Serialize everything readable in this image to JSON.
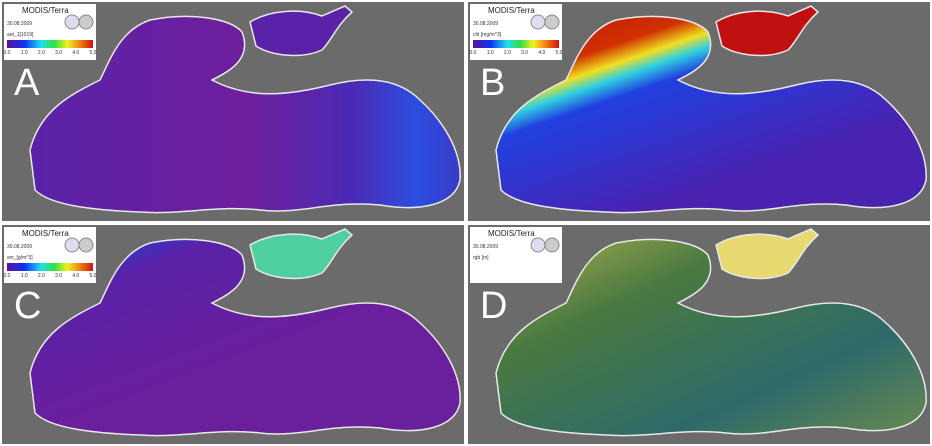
{
  "panels": [
    {
      "letter": "A",
      "sensor": "MODIS/Terra",
      "date": "30.08.2009",
      "product": "aot_1[1019]",
      "scale": [
        "0.0",
        "1.0",
        "2.0",
        "3.0",
        "4.0",
        "5.0"
      ]
    },
    {
      "letter": "B",
      "sensor": "MODIS/Terra",
      "date": "30.08.2009",
      "product": "chl [mg/m^3]",
      "scale": [
        "0.0",
        "1.0",
        "2.0",
        "3.0",
        "4.0",
        "5.0"
      ]
    },
    {
      "letter": "C",
      "sensor": "MODIS/Terra",
      "date": "30.08.2009",
      "product": "sm_[g/m^3]",
      "scale": [
        "0.0",
        "1.0",
        "2.0",
        "3.0",
        "4.0",
        "5.0"
      ]
    },
    {
      "letter": "D",
      "sensor": "MODIS/Terra",
      "date": "30.08.2009",
      "product": "rgb [m]"
    }
  ]
}
